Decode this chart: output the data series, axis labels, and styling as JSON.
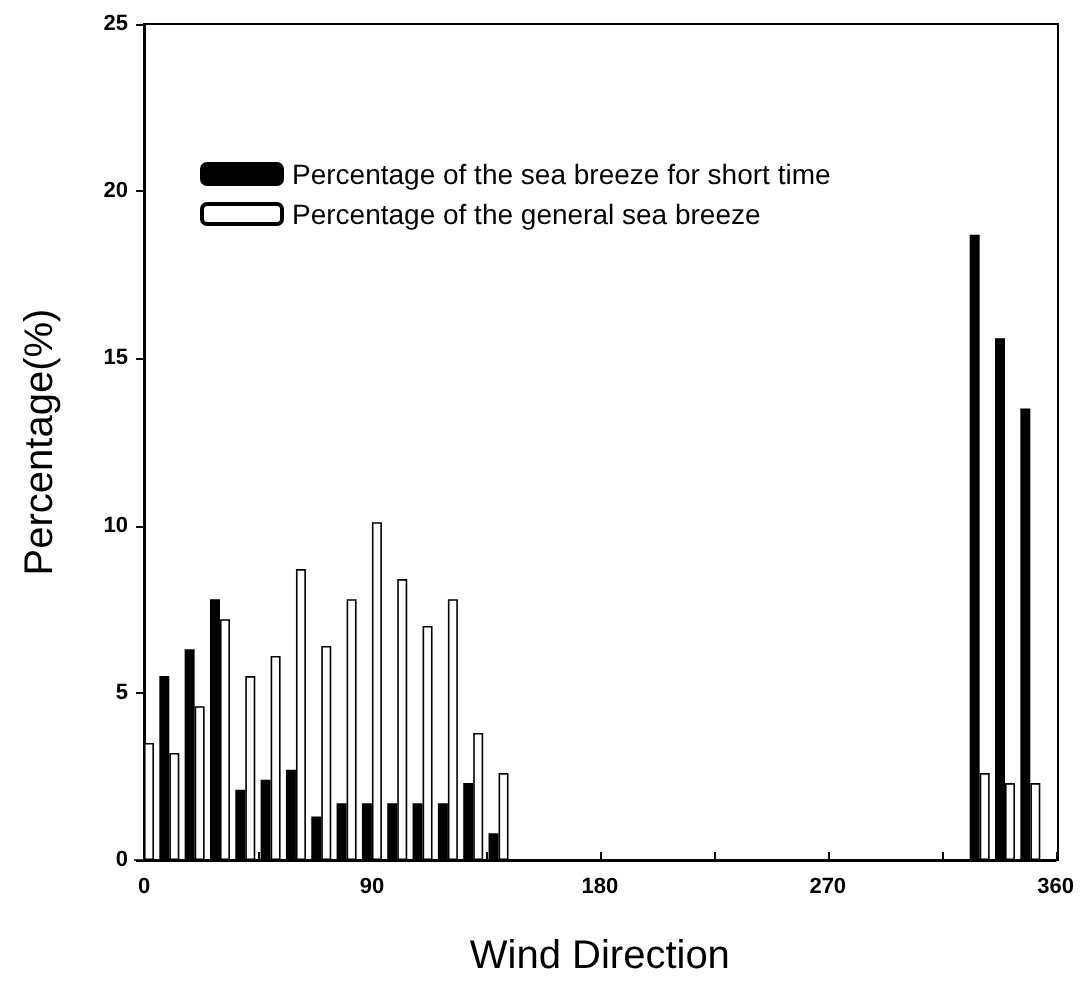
{
  "chart_data": {
    "type": "bar",
    "xlabel": "Wind Direction",
    "ylabel": "Percentage(%)",
    "x": [
      0,
      10,
      20,
      30,
      40,
      50,
      60,
      70,
      80,
      90,
      100,
      110,
      120,
      130,
      140,
      330,
      340,
      350
    ],
    "series": [
      {
        "name": "Percentage of the sea breeze for short time",
        "color": "#000000",
        "values": [
          0,
          5.5,
          6.3,
          7.8,
          2.1,
          2.4,
          2.7,
          1.3,
          1.7,
          1.7,
          1.7,
          1.7,
          1.7,
          2.3,
          0.8,
          18.7,
          15.6,
          13.5
        ]
      },
      {
        "name": "Percentage of the general sea breeze",
        "color": "#ffffff",
        "values": [
          3.5,
          3.2,
          4.6,
          7.2,
          5.5,
          6.1,
          8.7,
          6.4,
          7.8,
          10.1,
          8.4,
          7.0,
          7.8,
          3.8,
          2.6,
          2.6,
          2.3,
          2.3
        ]
      }
    ],
    "xlim": [
      0,
      360
    ],
    "xticks": [
      0,
      {
        "value": 45,
        "label": null
      },
      90,
      {
        "value": 135,
        "label": null
      },
      180,
      {
        "value": 225,
        "label": null
      },
      270,
      {
        "value": 315,
        "label": null
      },
      360
    ],
    "ylim": [
      0,
      25
    ],
    "yticks": [
      0,
      5,
      10,
      15,
      20,
      25
    ],
    "grid": false,
    "legend": "top left"
  }
}
